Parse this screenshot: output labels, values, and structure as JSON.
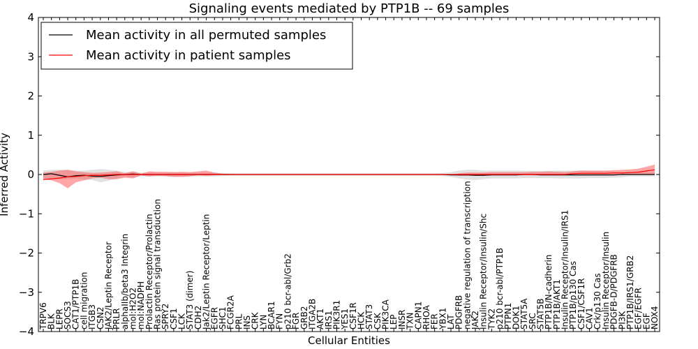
{
  "chart_data": {
    "type": "line",
    "title": "Signaling events mediated by PTP1B -- 69 samples",
    "xlabel": "Cellular Entities",
    "ylabel": "Inferred Activity",
    "ylim": [
      -4,
      4
    ],
    "yticks": [
      -4,
      -3,
      -2,
      -1,
      0,
      1,
      2,
      3,
      4
    ],
    "ytick_labels": [
      "−4",
      "−3",
      "−2",
      "−1",
      "0",
      "1",
      "2",
      "3",
      "4"
    ],
    "legend": {
      "placement": "top-left",
      "entries": [
        "Mean activity in all permuted samples",
        "Mean activity in patient samples"
      ]
    },
    "categories": [
      "TRPV6",
      "BLK",
      "LEPR",
      "SOCS3",
      "CAT1/PTP1B",
      "cell migration",
      "ITGB3",
      "CSN2",
      "JAK2/Leptin Receptor",
      "PRLR",
      "alphaIIb/beta3 Integrin",
      "mol:H2O2",
      "mol:NADPH",
      "Prolactin Receptor/Prolactin",
      "Ras protein signal transduction",
      "SPRY2",
      "CSF1",
      "LCK",
      "STAT3 (dimer)",
      "CDH2",
      "Jak2/Leptin Receptor/Leptin",
      "EGFR",
      "SHC1",
      "FCGR2A",
      "PRL",
      "INS",
      "CRK",
      "LYN",
      "BCAR1",
      "FYN",
      "p210 bcr-abl/Grb2",
      "FGR",
      "GRB2",
      "ITGA2B",
      "AKT1",
      "IRS1",
      "PIK3R1",
      "YES1",
      "CSF1R",
      "HCK",
      "STAT3",
      "CSK",
      "PIK3CA",
      "LEP",
      "INSR",
      "TXN",
      "CAPN1",
      "RHOA",
      "FER",
      "YBX1",
      "LAT",
      "PDGFRB",
      "negative regulation of transcription",
      "JAK2",
      "Insulin Receptor/Insulin/Shc",
      "TYK2",
      "p210 bcr-abl/PTP1B",
      "PTPN1",
      "DOK1",
      "STAT5A",
      "SRC",
      "STAT5B",
      "PTP1B/N-cadherin",
      "PTP1B/AKT1",
      "Insulin Receptor/Insulin/IRS1",
      "PTP1B/p130 Cas",
      "CSF1/CSF1R",
      "CAV1",
      "Crk/p130 Cas",
      "Insulin Receptor/Insulin",
      "PDGFB-D/PDGFRB",
      "PI3K",
      "PTP1B/IRS1/GRB2",
      "EGF/EGFR",
      "EGF",
      "NOX4"
    ],
    "series": [
      {
        "name": "Mean activity in all permuted samples",
        "color": "#000000",
        "values": [
          0.0,
          0.02,
          -0.02,
          -0.06,
          -0.03,
          -0.02,
          -0.04,
          -0.05,
          -0.03,
          -0.01,
          0.0,
          0.01,
          0.0,
          0.0,
          0.0,
          0.0,
          0.0,
          0.0,
          0.0,
          0.0,
          0.0,
          0.0,
          0.0,
          0.0,
          0.0,
          0.0,
          0.0,
          0.0,
          0.0,
          0.0,
          0.0,
          0.0,
          0.0,
          0.0,
          0.0,
          0.0,
          0.0,
          0.0,
          0.0,
          0.0,
          0.0,
          0.0,
          0.0,
          0.0,
          0.0,
          0.0,
          0.0,
          0.0,
          0.0,
          0.0,
          -0.01,
          -0.01,
          -0.01,
          -0.02,
          -0.02,
          -0.01,
          -0.01,
          -0.01,
          -0.01,
          0.0,
          0.0,
          -0.01,
          -0.01,
          -0.01,
          -0.01,
          -0.01,
          -0.01,
          -0.01,
          -0.01,
          -0.01,
          -0.01,
          0.0,
          0.0,
          0.0,
          0.0,
          0.0
        ],
        "band_lower": [
          -0.1,
          -0.12,
          -0.12,
          -0.12,
          -0.1,
          -0.12,
          -0.14,
          -0.2,
          -0.16,
          -0.1,
          -0.05,
          -0.08,
          -0.05,
          -0.05,
          -0.05,
          -0.05,
          -0.06,
          -0.05,
          -0.05,
          -0.05,
          -0.05,
          -0.05,
          -0.04,
          -0.03,
          -0.03,
          -0.03,
          -0.03,
          -0.03,
          -0.03,
          -0.03,
          -0.03,
          -0.03,
          -0.03,
          -0.03,
          -0.03,
          -0.03,
          -0.03,
          -0.03,
          -0.03,
          -0.03,
          -0.03,
          -0.03,
          -0.03,
          -0.03,
          -0.03,
          -0.03,
          -0.03,
          -0.03,
          -0.03,
          -0.04,
          -0.06,
          -0.1,
          -0.13,
          -0.14,
          -0.12,
          -0.1,
          -0.1,
          -0.1,
          -0.1,
          -0.09,
          -0.09,
          -0.09,
          -0.09,
          -0.1,
          -0.1,
          -0.1,
          -0.1,
          -0.09,
          -0.09,
          -0.09,
          -0.08,
          -0.07,
          -0.05,
          -0.05,
          -0.05,
          -0.05
        ],
        "band_upper": [
          0.1,
          0.12,
          0.12,
          0.12,
          0.1,
          0.1,
          0.12,
          0.14,
          0.12,
          0.1,
          0.06,
          0.08,
          0.05,
          0.05,
          0.05,
          0.05,
          0.06,
          0.05,
          0.05,
          0.05,
          0.05,
          0.05,
          0.04,
          0.03,
          0.03,
          0.03,
          0.03,
          0.03,
          0.03,
          0.03,
          0.03,
          0.03,
          0.03,
          0.03,
          0.03,
          0.03,
          0.03,
          0.03,
          0.03,
          0.03,
          0.03,
          0.03,
          0.03,
          0.03,
          0.03,
          0.03,
          0.03,
          0.03,
          0.03,
          0.04,
          0.06,
          0.1,
          0.12,
          0.12,
          0.1,
          0.1,
          0.1,
          0.1,
          0.1,
          0.09,
          0.09,
          0.09,
          0.09,
          0.1,
          0.1,
          0.1,
          0.1,
          0.09,
          0.09,
          0.09,
          0.08,
          0.07,
          0.06,
          0.06,
          0.06,
          0.06
        ],
        "band_color": "#c8c8c8"
      },
      {
        "name": "Mean activity in patient samples",
        "color": "#ff0000",
        "values": [
          -0.13,
          -0.11,
          -0.09,
          -0.06,
          -0.05,
          -0.03,
          -0.02,
          -0.02,
          -0.01,
          0.0,
          0.0,
          0.0,
          0.0,
          0.0,
          0.0,
          0.0,
          0.0,
          0.0,
          0.0,
          0.0,
          0.0,
          0.0,
          0.0,
          0.0,
          0.0,
          0.0,
          0.0,
          0.0,
          0.0,
          0.0,
          0.0,
          0.0,
          0.0,
          0.0,
          0.0,
          0.0,
          0.0,
          0.0,
          0.0,
          0.0,
          0.0,
          0.0,
          0.0,
          0.0,
          0.0,
          0.0,
          0.0,
          0.0,
          0.0,
          0.0,
          0.0,
          0.0,
          0.0,
          0.0,
          0.0,
          0.0,
          0.0,
          0.0,
          0.0,
          0.0,
          0.0,
          0.0,
          0.0,
          0.0,
          0.0,
          0.02,
          0.03,
          0.03,
          0.03,
          0.03,
          0.04,
          0.04,
          0.05,
          0.06,
          0.09,
          0.12
        ],
        "band_lower": [
          -0.13,
          -0.15,
          -0.22,
          -0.35,
          -0.2,
          -0.15,
          -0.1,
          -0.08,
          -0.12,
          -0.12,
          -0.08,
          -0.1,
          -0.02,
          -0.05,
          -0.03,
          -0.04,
          -0.06,
          -0.06,
          -0.05,
          -0.02,
          -0.03,
          -0.02,
          -0.01,
          -0.01,
          0.0,
          0.0,
          0.0,
          0.0,
          0.0,
          0.0,
          0.0,
          0.0,
          0.0,
          0.0,
          0.0,
          0.0,
          0.0,
          0.0,
          0.0,
          0.0,
          0.0,
          0.0,
          0.0,
          0.0,
          0.0,
          0.0,
          0.0,
          0.0,
          0.0,
          0.0,
          0.0,
          -0.03,
          -0.03,
          -0.03,
          -0.03,
          -0.02,
          -0.02,
          -0.02,
          -0.02,
          -0.02,
          -0.02,
          -0.02,
          -0.02,
          -0.02,
          -0.02,
          -0.01,
          -0.01,
          -0.01,
          -0.01,
          -0.01,
          0.0,
          0.0,
          0.0,
          0.0,
          0.0,
          0.0
        ],
        "band_upper": [
          0.05,
          0.07,
          0.1,
          0.12,
          0.08,
          0.06,
          0.04,
          0.05,
          0.06,
          0.08,
          0.03,
          0.08,
          0.02,
          0.08,
          0.07,
          0.07,
          0.06,
          0.07,
          0.06,
          0.08,
          0.1,
          0.05,
          0.02,
          0.01,
          0.0,
          0.0,
          0.0,
          0.0,
          0.0,
          0.0,
          0.0,
          0.0,
          0.0,
          0.0,
          0.0,
          0.0,
          0.0,
          0.0,
          0.0,
          0.0,
          0.0,
          0.0,
          0.0,
          0.0,
          0.0,
          0.0,
          0.0,
          0.0,
          0.0,
          0.0,
          0.0,
          0.03,
          0.05,
          0.05,
          0.05,
          0.06,
          0.06,
          0.06,
          0.06,
          0.06,
          0.07,
          0.07,
          0.08,
          0.07,
          0.06,
          0.08,
          0.1,
          0.1,
          0.1,
          0.1,
          0.11,
          0.12,
          0.13,
          0.15,
          0.2,
          0.25
        ],
        "band_color": "#ff4d4d"
      }
    ]
  }
}
